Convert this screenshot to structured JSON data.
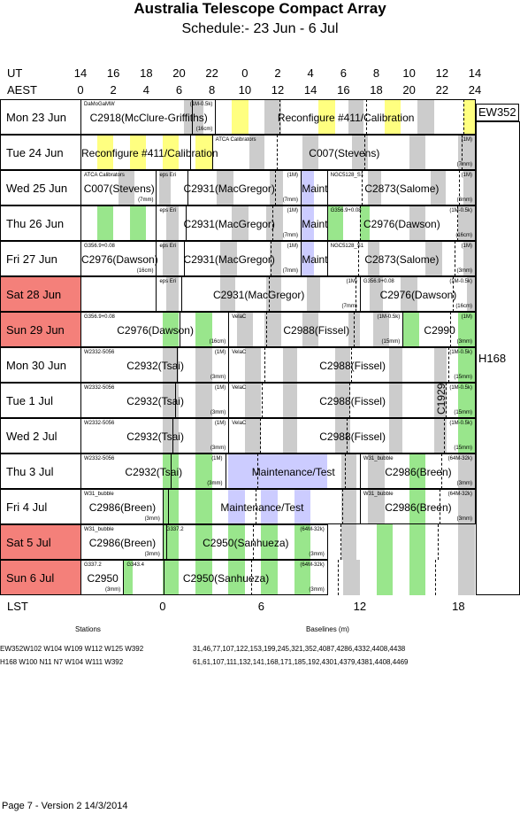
{
  "title": "Australia Telescope Compact Array",
  "subtitle": "Schedule:- 23 Jun - 6  Jul",
  "ut_label": "UT",
  "aest_label": "AEST",
  "lst_label": "LST",
  "ut_ticks": [
    "14",
    "16",
    "18",
    "20",
    "22",
    "0",
    "2",
    "4",
    "6",
    "8",
    "10",
    "12",
    "14"
  ],
  "aest_ticks": [
    "0",
    "2",
    "4",
    "6",
    "8",
    "10",
    "12",
    "14",
    "16",
    "18",
    "20",
    "22",
    "24"
  ],
  "lst_ticks": [
    "0",
    "6",
    "12",
    "18"
  ],
  "colors": {
    "yellow": "#ffff80",
    "green": "#99e68c",
    "grey": "#cccccc",
    "lavender": "#ccccff",
    "weekend": "#f4807a"
  },
  "days": [
    {
      "label": "Mon   23 Jun",
      "weekend": false,
      "blocks": [
        {
          "main": "C2918(McClure-Griffiths)",
          "tl": "DaMoGaMW",
          "tr": "(1M-0.5k)",
          "br": "(16cm)"
        },
        {
          "main": "Reconfigure #411/Calibration"
        }
      ]
    },
    {
      "label": "Tue   24 Jun",
      "weekend": false,
      "blocks": [
        {
          "main": "Reconfigure #411/Calibration"
        },
        {
          "main": "C007(Stevens)",
          "tl": "ATCA Calibrators",
          "tr": "(1M)",
          "br": "(7mm)"
        }
      ]
    },
    {
      "label": "Wed   25 Jun",
      "weekend": false,
      "blocks": [
        {
          "main": "C007(Stevens)",
          "tl": "ATCA Calibrators",
          "br": "(7mm)"
        },
        {
          "main": "C2931(MacGregor)",
          "tl": "eps Eri",
          "tr": "(1M)",
          "br": "(7mm)"
        },
        {
          "main": "Maint"
        },
        {
          "main": "C2873(Salome)",
          "tl": "NGC5128_S1",
          "tr": "(1M)",
          "br": "(3mm)"
        }
      ]
    },
    {
      "label": "Thu   26 Jun",
      "weekend": false,
      "blocks": [
        {
          "main": ""
        },
        {
          "main": "C2931(MacGregor)",
          "tl": "eps Eri",
          "tr": "(1M)",
          "br": "(7mm)"
        },
        {
          "main": "Maint"
        },
        {
          "main": "C2976(Dawson)",
          "tl": "G356.9+0.08",
          "tr": "(1M-0.5k)",
          "br": "(16cm)"
        }
      ]
    },
    {
      "label": "Fri   27 Jun",
      "weekend": false,
      "blocks": [
        {
          "main": "C2976(Dawson)",
          "tl": "G356.9+0.08",
          "br": "(16cm)"
        },
        {
          "main": "C2931(MacGregor)",
          "tl": "eps Eri",
          "tr": "(1M)",
          "br": "(7mm)"
        },
        {
          "main": "Maint"
        },
        {
          "main": "C2873(Salome)",
          "tl": "NGC5128_S1",
          "tr": "(1M)",
          "br": "(3mm)"
        }
      ]
    },
    {
      "label": "Sat   28 Jun",
      "weekend": true,
      "blocks": [
        {
          "main": ""
        },
        {
          "main": "C2931(MacGregor)",
          "tl": "eps Eri",
          "tr": "(1M)",
          "br": "(7mm)"
        },
        {
          "main": "C2976(Dawson)",
          "tl": "G356.9+0.08",
          "tr": "(1M-0.5k)",
          "br": "(16cm)"
        }
      ]
    },
    {
      "label": "Sun   29 Jun",
      "weekend": true,
      "blocks": [
        {
          "main": "C2976(Dawson)",
          "tl": "G356.9+0.08",
          "br": "(16cm)"
        },
        {
          "main": "C2988(Fissel)",
          "tl": "VelaC",
          "tr": "(1M-0.5k)",
          "br": "(15mm)"
        },
        {
          "main": "C2990",
          "tr": "(1M)",
          "br": "(3mm)"
        }
      ]
    },
    {
      "label": "Mon   30 Jun",
      "weekend": false,
      "blocks": [
        {
          "main": "C2932(Tsai)",
          "tl": "W2332-5056",
          "tr": "(1M)",
          "br": "(3mm)"
        },
        {
          "main": "C2988(Fissel)",
          "tl": "VelaC",
          "tr": "(1M-0.5k)",
          "br": "(15mm)"
        }
      ]
    },
    {
      "label": "Tue     1  Jul",
      "weekend": false,
      "blocks": [
        {
          "main": "C2932(Tsai)",
          "tl": "W2332-5056",
          "tr": "(1M)",
          "br": "(3mm)"
        },
        {
          "main": "C2988(Fissel)",
          "tl": "VelaC",
          "tr": "(1M-0.5k)",
          "br": "(15mm)"
        }
      ]
    },
    {
      "label": "Wed     2  Jul",
      "weekend": false,
      "blocks": [
        {
          "main": "C2932(Tsai)",
          "tl": "W2332-5056",
          "tr": "(1M)",
          "br": "(3mm)"
        },
        {
          "main": "C2988(Fissel)",
          "tl": "VelaC",
          "tr": "(1M-0.5k)",
          "br": "(15mm)"
        }
      ]
    },
    {
      "label": "Thu     3  Jul",
      "weekend": false,
      "blocks": [
        {
          "main": "C2932(Tsai)",
          "tl": "W2332-5056",
          "tr": "(1M)",
          "br": "(3mm)"
        },
        {
          "main": "Maintenance/Test"
        },
        {
          "main": "C2986(Breen)",
          "tl": "W31_bubble",
          "tr": "(64M-32k)",
          "br": "(3mm)"
        }
      ]
    },
    {
      "label": "Fri     4  Jul",
      "weekend": false,
      "blocks": [
        {
          "main": "C2986(Breen)",
          "tl": "W31_bubble",
          "br": "(3mm)"
        },
        {
          "main": "Maintenance/Test"
        },
        {
          "main": "C2986(Breen)",
          "tl": "W31_bubble",
          "tr": "(64M-32k)",
          "br": "(3mm)"
        }
      ]
    },
    {
      "label": "Sat     5  Jul",
      "weekend": true,
      "blocks": [
        {
          "main": "C2986(Breen)",
          "tl": "W31_bubble",
          "br": "(3mm)"
        },
        {
          "main": "C2950(Sanhueza)",
          "tl": "G337.2",
          "tr": "(64M-32k)",
          "br": "(3mm)"
        }
      ]
    },
    {
      "label": "Sun     6  Jul",
      "weekend": true,
      "blocks": [
        {
          "main": "C2950",
          "tl": "G337.2",
          "br": "(3mm)"
        },
        {
          "main": "C2950(Sanhueza)",
          "tl": "G343.4",
          "tr": "(64M-32k)",
          "br": "(3mm)"
        }
      ]
    }
  ],
  "extra_label": "C1929",
  "config_labels": [
    "EW352",
    "H168"
  ],
  "footer": {
    "stations_header": "Stations",
    "baselines_header": "Baselines (m)",
    "rows": [
      {
        "stations": "EW352W102 W104 W109 W112 W125 W392",
        "baselines": "31,46,77,107,122,153,199,245,321,352,4087,4286,4332,4408,4438"
      },
      {
        "stations": "H168  W100 N11 N7 W104 W111 W392",
        "baselines": "61,61,107,111,132,141,168,171,185,192,4301,4379,4381,4408,4469"
      }
    ]
  },
  "version": "Page 7 - Version 2  14/3/2014"
}
